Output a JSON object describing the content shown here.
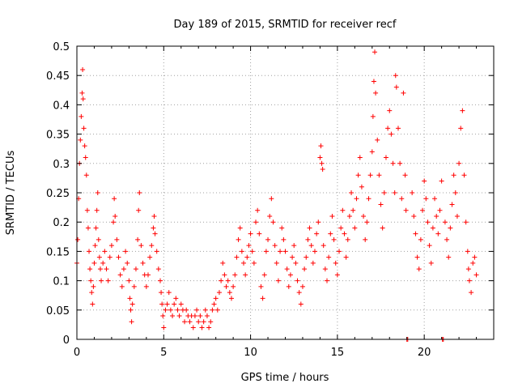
{
  "chart_data": {
    "type": "scatter",
    "title": "Day 189 of 2015, SRMTID for receiver recf",
    "xlabel": "GPS time / hours",
    "ylabel": "SRMTID / TECUs",
    "xlim": [
      0,
      24
    ],
    "ylim": [
      0,
      0.5
    ],
    "xticks": [
      0,
      5,
      10,
      15,
      20
    ],
    "xtick_labels": [
      "0",
      "5",
      "10",
      "15",
      "20"
    ],
    "yticks": [
      0,
      0.05,
      0.1,
      0.15,
      0.2,
      0.25,
      0.3,
      0.35,
      0.4,
      0.45,
      0.5
    ],
    "ytick_labels": [
      "0",
      "0.05",
      "0.1",
      "0.15",
      "0.2",
      "0.25",
      "0.3",
      "0.35",
      "0.4",
      "0.45",
      "0.5"
    ],
    "grid": true,
    "marker": "+",
    "marker_color": "#ff0000",
    "series": [
      {
        "name": "SRMTID",
        "points": [
          [
            0.0,
            0.13
          ],
          [
            0.05,
            0.17
          ],
          [
            0.1,
            0.24
          ],
          [
            0.15,
            0.3
          ],
          [
            0.2,
            0.34
          ],
          [
            0.25,
            0.38
          ],
          [
            0.3,
            0.42
          ],
          [
            0.33,
            0.46
          ],
          [
            0.36,
            0.41
          ],
          [
            0.4,
            0.36
          ],
          [
            0.45,
            0.33
          ],
          [
            0.5,
            0.31
          ],
          [
            0.55,
            0.28
          ],
          [
            0.6,
            0.22
          ],
          [
            0.65,
            0.19
          ],
          [
            0.7,
            0.15
          ],
          [
            0.75,
            0.12
          ],
          [
            0.8,
            0.1
          ],
          [
            0.85,
            0.08
          ],
          [
            0.9,
            0.06
          ],
          [
            0.95,
            0.09
          ],
          [
            1.0,
            0.13
          ],
          [
            1.05,
            0.16
          ],
          [
            1.1,
            0.19
          ],
          [
            1.15,
            0.22
          ],
          [
            1.2,
            0.25
          ],
          [
            1.25,
            0.17
          ],
          [
            1.3,
            0.14
          ],
          [
            1.35,
            0.12
          ],
          [
            1.4,
            0.1
          ],
          [
            1.5,
            0.13
          ],
          [
            1.6,
            0.15
          ],
          [
            1.7,
            0.12
          ],
          [
            1.8,
            0.1
          ],
          [
            1.9,
            0.14
          ],
          [
            2.0,
            0.16
          ],
          [
            2.1,
            0.2
          ],
          [
            2.15,
            0.24
          ],
          [
            2.2,
            0.21
          ],
          [
            2.3,
            0.17
          ],
          [
            2.4,
            0.14
          ],
          [
            2.5,
            0.11
          ],
          [
            2.6,
            0.09
          ],
          [
            2.7,
            0.12
          ],
          [
            2.8,
            0.15
          ],
          [
            2.9,
            0.13
          ],
          [
            3.0,
            0.1
          ],
          [
            3.05,
            0.07
          ],
          [
            3.1,
            0.05
          ],
          [
            3.15,
            0.03
          ],
          [
            3.2,
            0.06
          ],
          [
            3.3,
            0.09
          ],
          [
            3.4,
            0.12
          ],
          [
            3.5,
            0.17
          ],
          [
            3.55,
            0.22
          ],
          [
            3.6,
            0.25
          ],
          [
            3.7,
            0.16
          ],
          [
            3.8,
            0.13
          ],
          [
            3.9,
            0.11
          ],
          [
            4.0,
            0.09
          ],
          [
            4.1,
            0.11
          ],
          [
            4.2,
            0.14
          ],
          [
            4.3,
            0.16
          ],
          [
            4.4,
            0.19
          ],
          [
            4.45,
            0.21
          ],
          [
            4.5,
            0.18
          ],
          [
            4.6,
            0.15
          ],
          [
            4.7,
            0.12
          ],
          [
            4.8,
            0.1
          ],
          [
            4.85,
            0.08
          ],
          [
            4.9,
            0.06
          ],
          [
            4.95,
            0.04
          ],
          [
            5.0,
            0.02
          ],
          [
            5.1,
            0.05
          ],
          [
            5.2,
            0.06
          ],
          [
            5.3,
            0.08
          ],
          [
            5.4,
            0.05
          ],
          [
            5.5,
            0.04
          ],
          [
            5.6,
            0.06
          ],
          [
            5.7,
            0.07
          ],
          [
            5.8,
            0.05
          ],
          [
            5.9,
            0.04
          ],
          [
            6.0,
            0.06
          ],
          [
            6.1,
            0.05
          ],
          [
            6.2,
            0.03
          ],
          [
            6.3,
            0.05
          ],
          [
            6.4,
            0.04
          ],
          [
            6.5,
            0.03
          ],
          [
            6.6,
            0.04
          ],
          [
            6.7,
            0.02
          ],
          [
            6.8,
            0.04
          ],
          [
            6.9,
            0.05
          ],
          [
            7.0,
            0.03
          ],
          [
            7.1,
            0.04
          ],
          [
            7.2,
            0.02
          ],
          [
            7.3,
            0.03
          ],
          [
            7.4,
            0.05
          ],
          [
            7.5,
            0.04
          ],
          [
            7.6,
            0.02
          ],
          [
            7.7,
            0.03
          ],
          [
            7.8,
            0.05
          ],
          [
            7.9,
            0.06
          ],
          [
            8.0,
            0.07
          ],
          [
            8.1,
            0.05
          ],
          [
            8.2,
            0.08
          ],
          [
            8.3,
            0.1
          ],
          [
            8.4,
            0.13
          ],
          [
            8.5,
            0.11
          ],
          [
            8.6,
            0.09
          ],
          [
            8.7,
            0.1
          ],
          [
            8.8,
            0.08
          ],
          [
            8.9,
            0.07
          ],
          [
            9.0,
            0.09
          ],
          [
            9.1,
            0.11
          ],
          [
            9.2,
            0.14
          ],
          [
            9.3,
            0.17
          ],
          [
            9.4,
            0.19
          ],
          [
            9.5,
            0.15
          ],
          [
            9.6,
            0.13
          ],
          [
            9.7,
            0.11
          ],
          [
            9.8,
            0.14
          ],
          [
            9.9,
            0.16
          ],
          [
            10.0,
            0.18
          ],
          [
            10.1,
            0.15
          ],
          [
            10.2,
            0.13
          ],
          [
            10.3,
            0.2
          ],
          [
            10.4,
            0.22
          ],
          [
            10.5,
            0.18
          ],
          [
            10.6,
            0.09
          ],
          [
            10.7,
            0.07
          ],
          [
            10.8,
            0.11
          ],
          [
            10.9,
            0.15
          ],
          [
            11.0,
            0.17
          ],
          [
            11.1,
            0.21
          ],
          [
            11.2,
            0.24
          ],
          [
            11.3,
            0.2
          ],
          [
            11.4,
            0.16
          ],
          [
            11.5,
            0.13
          ],
          [
            11.6,
            0.1
          ],
          [
            11.7,
            0.15
          ],
          [
            11.8,
            0.19
          ],
          [
            11.9,
            0.17
          ],
          [
            12.0,
            0.15
          ],
          [
            12.1,
            0.12
          ],
          [
            12.2,
            0.09
          ],
          [
            12.3,
            0.11
          ],
          [
            12.4,
            0.14
          ],
          [
            12.5,
            0.16
          ],
          [
            12.6,
            0.13
          ],
          [
            12.7,
            0.1
          ],
          [
            12.8,
            0.08
          ],
          [
            12.9,
            0.06
          ],
          [
            13.0,
            0.09
          ],
          [
            13.1,
            0.12
          ],
          [
            13.2,
            0.14
          ],
          [
            13.3,
            0.17
          ],
          [
            13.4,
            0.19
          ],
          [
            13.5,
            0.16
          ],
          [
            13.6,
            0.13
          ],
          [
            13.7,
            0.15
          ],
          [
            13.8,
            0.18
          ],
          [
            13.9,
            0.2
          ],
          [
            14.0,
            0.31
          ],
          [
            14.05,
            0.33
          ],
          [
            14.1,
            0.3
          ],
          [
            14.15,
            0.29
          ],
          [
            14.2,
            0.16
          ],
          [
            14.3,
            0.12
          ],
          [
            14.4,
            0.1
          ],
          [
            14.5,
            0.14
          ],
          [
            14.6,
            0.18
          ],
          [
            14.7,
            0.21
          ],
          [
            14.8,
            0.17
          ],
          [
            14.9,
            0.13
          ],
          [
            15.0,
            0.11
          ],
          [
            15.1,
            0.15
          ],
          [
            15.2,
            0.19
          ],
          [
            15.3,
            0.22
          ],
          [
            15.4,
            0.18
          ],
          [
            15.5,
            0.14
          ],
          [
            15.6,
            0.17
          ],
          [
            15.7,
            0.21
          ],
          [
            15.8,
            0.25
          ],
          [
            15.9,
            0.22
          ],
          [
            16.0,
            0.19
          ],
          [
            16.1,
            0.24
          ],
          [
            16.2,
            0.28
          ],
          [
            16.3,
            0.31
          ],
          [
            16.4,
            0.26
          ],
          [
            16.5,
            0.21
          ],
          [
            16.6,
            0.17
          ],
          [
            16.7,
            0.2
          ],
          [
            16.8,
            0.24
          ],
          [
            16.9,
            0.28
          ],
          [
            17.0,
            0.32
          ],
          [
            17.05,
            0.38
          ],
          [
            17.1,
            0.44
          ],
          [
            17.15,
            0.49
          ],
          [
            17.2,
            0.42
          ],
          [
            17.3,
            0.34
          ],
          [
            17.4,
            0.28
          ],
          [
            17.5,
            0.23
          ],
          [
            17.6,
            0.19
          ],
          [
            17.7,
            0.25
          ],
          [
            17.8,
            0.31
          ],
          [
            17.9,
            0.36
          ],
          [
            18.0,
            0.39
          ],
          [
            18.1,
            0.35
          ],
          [
            18.2,
            0.3
          ],
          [
            18.3,
            0.25
          ],
          [
            18.35,
            0.45
          ],
          [
            18.4,
            0.43
          ],
          [
            18.5,
            0.36
          ],
          [
            18.6,
            0.3
          ],
          [
            18.7,
            0.24
          ],
          [
            18.8,
            0.42
          ],
          [
            18.9,
            0.28
          ],
          [
            18.95,
            0.22
          ],
          [
            19.0,
            0.0
          ],
          [
            19.05,
            0.0
          ],
          [
            19.3,
            0.25
          ],
          [
            19.4,
            0.21
          ],
          [
            19.5,
            0.18
          ],
          [
            19.6,
            0.14
          ],
          [
            19.7,
            0.12
          ],
          [
            19.8,
            0.17
          ],
          [
            19.9,
            0.22
          ],
          [
            20.0,
            0.27
          ],
          [
            20.1,
            0.24
          ],
          [
            20.2,
            0.2
          ],
          [
            20.3,
            0.16
          ],
          [
            20.4,
            0.13
          ],
          [
            20.5,
            0.19
          ],
          [
            20.6,
            0.24
          ],
          [
            20.7,
            0.21
          ],
          [
            20.8,
            0.18
          ],
          [
            20.9,
            0.22
          ],
          [
            21.0,
            0.27
          ],
          [
            21.05,
            0.0
          ],
          [
            21.1,
            0.0
          ],
          [
            21.2,
            0.2
          ],
          [
            21.3,
            0.17
          ],
          [
            21.4,
            0.14
          ],
          [
            21.5,
            0.19
          ],
          [
            21.6,
            0.23
          ],
          [
            21.7,
            0.28
          ],
          [
            21.8,
            0.25
          ],
          [
            21.9,
            0.21
          ],
          [
            22.0,
            0.3
          ],
          [
            22.1,
            0.36
          ],
          [
            22.2,
            0.39
          ],
          [
            22.3,
            0.28
          ],
          [
            22.4,
            0.2
          ],
          [
            22.5,
            0.15
          ],
          [
            22.55,
            0.12
          ],
          [
            22.6,
            0.1
          ],
          [
            22.7,
            0.08
          ],
          [
            22.8,
            0.13
          ],
          [
            22.9,
            0.14
          ],
          [
            23.0,
            0.11
          ]
        ]
      }
    ]
  }
}
